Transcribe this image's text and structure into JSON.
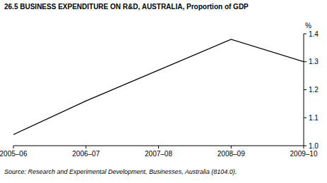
{
  "chart_data": {
    "type": "line",
    "title": "26.5 BUSINESS EXPENDITURE ON R&D, AUSTRALIA, Proportion of GDP",
    "ylabel": "%",
    "source": "Source: Research and Experimental Development, Businesses, Australia (8104.0).",
    "categories": [
      "2005–06",
      "2006–07",
      "2007–08",
      "2008–09",
      "2009–10"
    ],
    "values": [
      1.04,
      1.16,
      1.27,
      1.38,
      1.3
    ],
    "color": "#000000",
    "ylim": [
      1.0,
      1.4
    ],
    "yticks": [
      {
        "value": 1.0,
        "label": "1.0"
      },
      1.1,
      1.2,
      1.3,
      1.4
    ],
    "grid": false
  }
}
